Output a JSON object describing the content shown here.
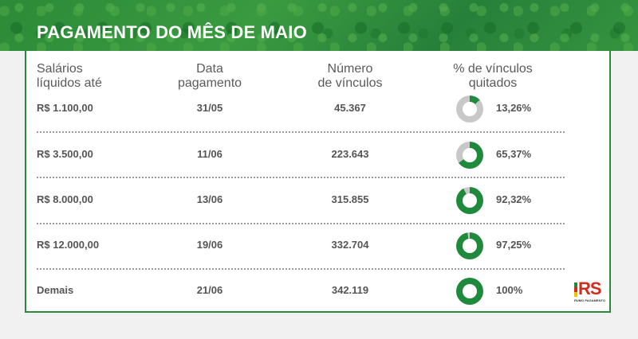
{
  "title": "PAGAMENTO DO MÊS DE MAIO",
  "headers": {
    "salary": [
      "Salários",
      "líquidos até"
    ],
    "date": [
      "Data",
      "pagamento"
    ],
    "count": [
      "Número",
      "de vínculos"
    ],
    "percent": [
      "% de vínculos",
      "quitados"
    ]
  },
  "rows": [
    {
      "salary": "R$ 1.100,00",
      "date": "31/05",
      "count": "45.367",
      "percent_label": "13,26%",
      "percent": 13.26
    },
    {
      "salary": "R$ 3.500,00",
      "date": "11/06",
      "count": "223.643",
      "percent_label": "65,37%",
      "percent": 65.37
    },
    {
      "salary": "R$ 8.000,00",
      "date": "13/06",
      "count": "315.855",
      "percent_label": "92,32%",
      "percent": 92.32
    },
    {
      "salary": "R$ 12.000,00",
      "date": "19/06",
      "count": "332.704",
      "percent_label": "97,25%",
      "percent": 97.25
    },
    {
      "salary": "Demais",
      "date": "21/06",
      "count": "342.119",
      "percent_label": "100%",
      "percent": 100
    }
  ],
  "colors": {
    "filled": "#1f8a3c",
    "empty": "#c8c8c8",
    "flag_green": "#1f8a3c",
    "flag_red": "#d52b1e",
    "flag_yellow": "#f2c200"
  },
  "logo": {
    "text": "RS",
    "tagline": "RUMO PAGAMENTO"
  }
}
